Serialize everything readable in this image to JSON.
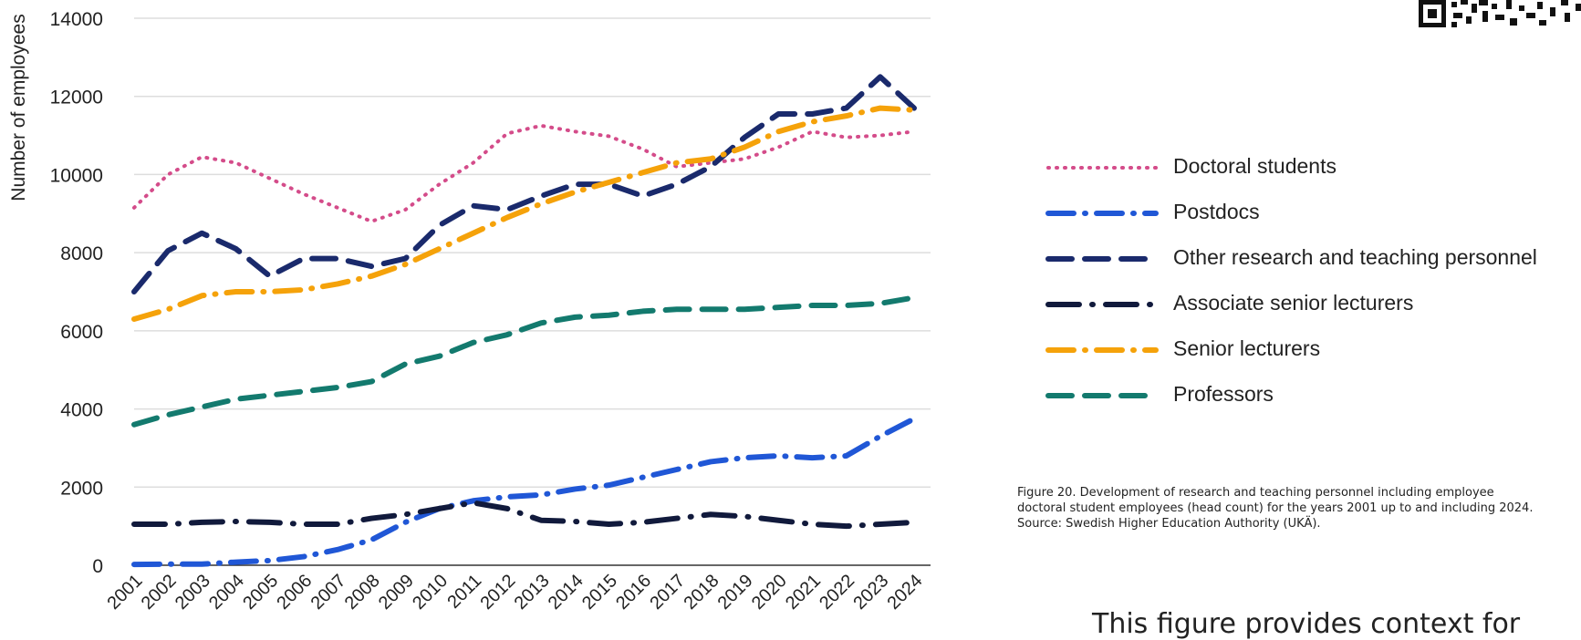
{
  "chart_data": {
    "type": "line",
    "ylabel": "Number of employees",
    "xlabel": "",
    "ylim": [
      0,
      14000
    ],
    "yticks": [
      0,
      2000,
      4000,
      6000,
      8000,
      10000,
      12000,
      14000
    ],
    "grid": true,
    "legend_position": "right",
    "categories": [
      "2001",
      "2002",
      "2003",
      "2004",
      "2005",
      "2006",
      "2007",
      "2008",
      "2009",
      "2010",
      "2011",
      "2012",
      "2013",
      "2014",
      "2015",
      "2016",
      "2017",
      "2018",
      "2019",
      "2020",
      "2021",
      "2022",
      "2023",
      "2024"
    ],
    "series": [
      {
        "name": "Doctoral students",
        "color": "#d44c8a",
        "style": "dotted",
        "values": [
          9150,
          10000,
          10450,
          10300,
          9900,
          9500,
          9150,
          8800,
          9100,
          9750,
          10300,
          11050,
          11250,
          11100,
          10980,
          10650,
          10200,
          10300,
          10400,
          10700,
          11100,
          10950,
          11000,
          11100
        ]
      },
      {
        "name": "Postdocs",
        "color": "#2057d6",
        "style": "dash-dot",
        "values": [
          20,
          30,
          30,
          80,
          120,
          220,
          400,
          650,
          1100,
          1450,
          1650,
          1750,
          1800,
          1950,
          2050,
          2250,
          2450,
          2650,
          2750,
          2800,
          2750,
          2800,
          3300,
          3750
        ]
      },
      {
        "name": "Other research and teaching personnel",
        "color": "#1a2a6c",
        "style": "dashed",
        "values": [
          7000,
          8050,
          8500,
          8100,
          7400,
          7850,
          7850,
          7650,
          7850,
          8700,
          9200,
          9100,
          9450,
          9750,
          9750,
          9450,
          9750,
          10200,
          10950,
          11550,
          11550,
          11700,
          12500,
          11700
        ]
      },
      {
        "name": "Associate senior lecturers",
        "color": "#111a3c",
        "style": "long-dash-dot",
        "values": [
          1050,
          1050,
          1100,
          1120,
          1100,
          1050,
          1050,
          1200,
          1300,
          1450,
          1600,
          1450,
          1150,
          1120,
          1050,
          1100,
          1200,
          1300,
          1250,
          1150,
          1050,
          1000,
          1050,
          1100
        ]
      },
      {
        "name": "Senior lecturers",
        "color": "#f5a20a",
        "style": "dash-dot",
        "values": [
          6300,
          6550,
          6900,
          7000,
          7000,
          7050,
          7200,
          7400,
          7700,
          8100,
          8500,
          8900,
          9250,
          9550,
          9800,
          10050,
          10300,
          10400,
          10700,
          11100,
          11350,
          11500,
          11700,
          11650
        ]
      },
      {
        "name": "Professors",
        "color": "#137a6e",
        "style": "dashed",
        "values": [
          3600,
          3850,
          4050,
          4250,
          4350,
          4450,
          4550,
          4700,
          5150,
          5350,
          5700,
          5900,
          6200,
          6350,
          6400,
          6500,
          6550,
          6550,
          6550,
          6600,
          6650,
          6650,
          6700,
          6850
        ]
      }
    ]
  },
  "caption": {
    "line1": "Figure 20. Development of research and teaching personnel including employee",
    "line2": "doctoral student employees (head count) for the years 2001 up to and including 2024.",
    "line3": "Source: Swedish Higher Education Authority (UKÄ)."
  },
  "body_text": "This figure provides context for"
}
